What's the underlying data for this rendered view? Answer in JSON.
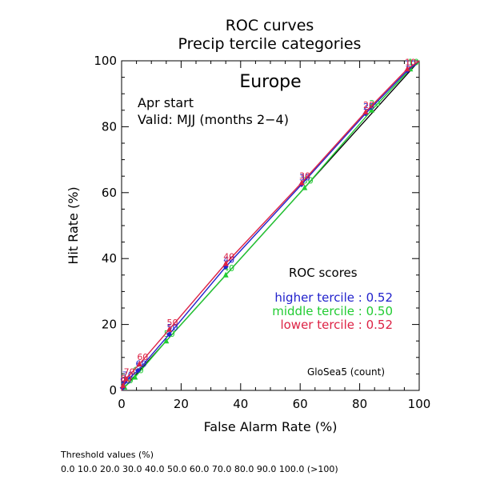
{
  "chart_data": {
    "type": "line",
    "title": "ROC curves",
    "subtitle": "Precip tercile categories",
    "region": "Europe",
    "start": "Apr start",
    "valid": "Valid: MJJ (months 2−4)",
    "xlabel": "False Alarm Rate (%)",
    "ylabel": "Hit Rate (%)",
    "xlim": [
      0,
      100
    ],
    "ylim": [
      0,
      100
    ],
    "xticks": [
      0,
      20,
      40,
      60,
      80,
      100
    ],
    "yticks": [
      0,
      20,
      40,
      60,
      80,
      100
    ],
    "grid": false,
    "scores_title": "ROC scores",
    "model_label": "GloSea5 (count)",
    "series": [
      {
        "name": "higher tercile",
        "score": "0.52",
        "color": "#2222cc",
        "marker": "diamond",
        "points": [
          {
            "x": 0,
            "y": 0
          },
          {
            "x": 0.3,
            "y": 0.8,
            "label": "90"
          },
          {
            "x": 1,
            "y": 2.5,
            "label": "70"
          },
          {
            "x": 5.5,
            "y": 6,
            "label": "60"
          },
          {
            "x": 16,
            "y": 17,
            "label": "50"
          },
          {
            "x": 35,
            "y": 37.5,
            "label": "40"
          },
          {
            "x": 60.5,
            "y": 62.5,
            "label": "30"
          },
          {
            "x": 82,
            "y": 84,
            "label": "20"
          },
          {
            "x": 96,
            "y": 97,
            "label": "10"
          },
          {
            "x": 100,
            "y": 100
          }
        ]
      },
      {
        "name": "middle tercile",
        "score": "0.50",
        "color": "#22cc33",
        "marker": "triangle",
        "points": [
          {
            "x": 0,
            "y": 0
          },
          {
            "x": 1,
            "y": 1,
            "label": "70"
          },
          {
            "x": 4.5,
            "y": 4,
            "label": "60"
          },
          {
            "x": 15,
            "y": 15,
            "label": "50"
          },
          {
            "x": 35,
            "y": 35,
            "label": "40"
          },
          {
            "x": 61.5,
            "y": 61.5,
            "label": "30"
          },
          {
            "x": 84,
            "y": 85,
            "label": "20"
          },
          {
            "x": 97,
            "y": 97.5,
            "label": "10"
          },
          {
            "x": 100,
            "y": 100
          }
        ]
      },
      {
        "name": "lower tercile",
        "score": "0.52",
        "color": "#dd2244",
        "marker": "triangle",
        "points": [
          {
            "x": 0,
            "y": 0
          },
          {
            "x": 0.5,
            "y": 1.5,
            "label": "80"
          },
          {
            "x": 1.5,
            "y": 3.5,
            "label": "70"
          },
          {
            "x": 6,
            "y": 8,
            "label": "60"
          },
          {
            "x": 16,
            "y": 18.5,
            "label": "50"
          },
          {
            "x": 35,
            "y": 38.5,
            "label": "40"
          },
          {
            "x": 60.5,
            "y": 63,
            "label": "30"
          },
          {
            "x": 82,
            "y": 84.5,
            "label": "20"
          },
          {
            "x": 96,
            "y": 97.5,
            "label": "10"
          },
          {
            "x": 100,
            "y": 100
          }
        ]
      }
    ]
  },
  "footer": {
    "threshold_title": "Threshold values (%)",
    "threshold_values": "0.0 10.0 20.0 30.0 40.0 50.0 60.0 70.0 80.0 90.0 100.0 (>100)"
  }
}
